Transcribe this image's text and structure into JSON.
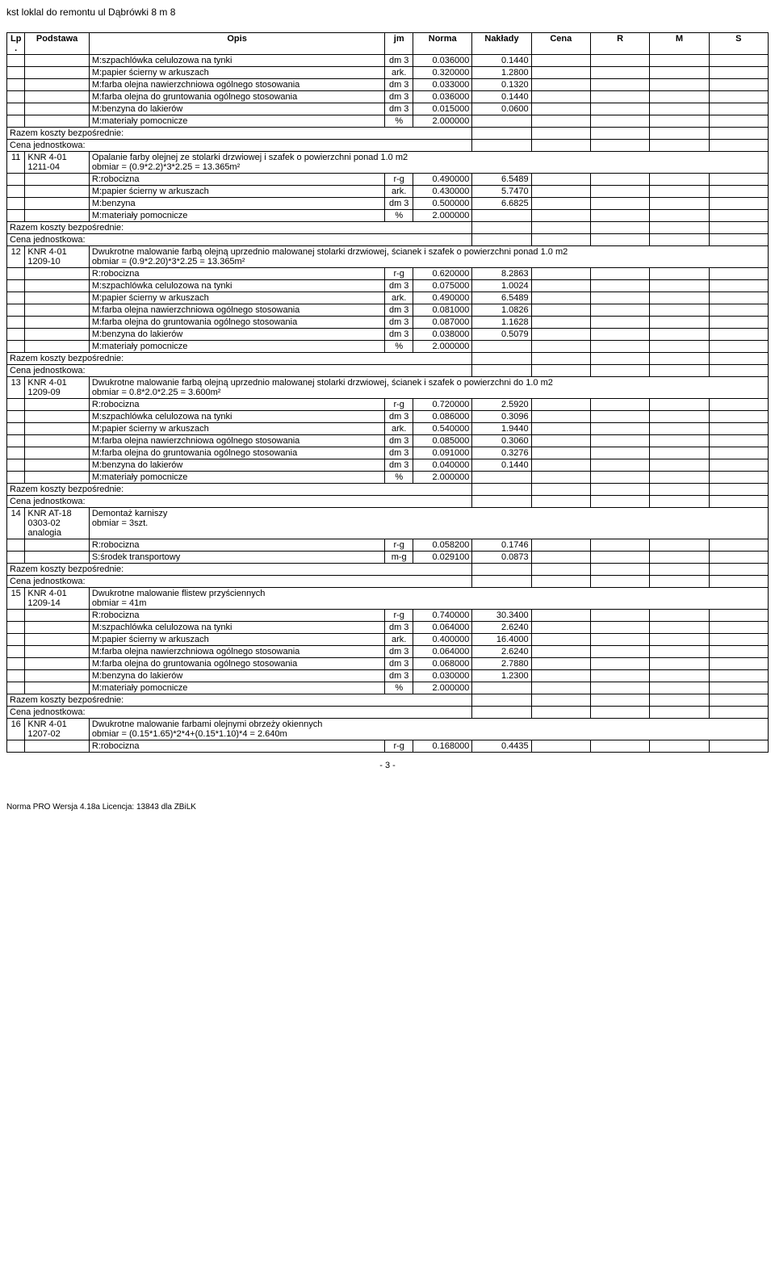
{
  "doc_title": "kst loklal do remontu ul Dąbrówki 8 m 8",
  "header": {
    "lp": "Lp.",
    "podstawa": "Podstawa",
    "opis": "Opis",
    "jm": "jm",
    "norma": "Norma",
    "naklady": "Nakłady",
    "cena": "Cena",
    "r": "R",
    "m": "M",
    "s": "S"
  },
  "labels": {
    "razem": "Razem koszty bezpośrednie:",
    "cena_j": "Cena jednostkowa:",
    "mat_pom": "M:materiały pomocnicze",
    "mat_pom_jm": "%",
    "mat_pom_norma": "2.000000"
  },
  "pre_rows": [
    {
      "name": "szpachlowka",
      "opis": "M:szpachlówka celulozowa na tynki",
      "jm": "dm 3",
      "norma": "0.036000",
      "nakl": "0.1440"
    },
    {
      "name": "papier-scierny",
      "opis": "M:papier ścierny w arkuszach",
      "jm": "ark.",
      "norma": "0.320000",
      "nakl": "1.2800"
    },
    {
      "name": "farba-nawierzch",
      "opis": "M:farba olejna nawierzchniowa ogólnego stosowania",
      "jm": "dm 3",
      "norma": "0.033000",
      "nakl": "0.1320"
    },
    {
      "name": "farba-grunt",
      "opis": "M:farba olejna do gruntowania ogólnego stosowania",
      "jm": "dm 3",
      "norma": "0.036000",
      "nakl": "0.1440"
    },
    {
      "name": "benzyna-lak",
      "opis": "M:benzyna do lakierów",
      "jm": "dm 3",
      "norma": "0.015000",
      "nakl": "0.0600"
    }
  ],
  "sections": [
    {
      "lp": "11",
      "pod": "KNR 4-01 1211-04",
      "desc": "Opalanie farby olejnej ze stolarki drzwiowej i szafek o powierzchni ponad 1.0 m2",
      "obmiar": "obmiar  = (0.9*2.2)*3*2.25 = 13.365m²",
      "rows": [
        {
          "name": "robocizna",
          "opis": "R:robocizna",
          "jm": "r-g",
          "norma": "0.490000",
          "nakl": "6.5489"
        },
        {
          "name": "papier",
          "opis": "M:papier ścierny w arkuszach",
          "jm": "ark.",
          "norma": "0.430000",
          "nakl": "5.7470"
        },
        {
          "name": "benzyna",
          "opis": "M:benzyna",
          "jm": "dm 3",
          "norma": "0.500000",
          "nakl": "6.6825"
        }
      ],
      "mat_pom": true
    },
    {
      "lp": "12",
      "pod": "KNR 4-01 1209-10",
      "desc": "Dwukrotne malowanie farbą olejną uprzednio malowanej stolarki drzwiowej, ścianek i szafek o powierzchni ponad 1.0 m2",
      "obmiar": "obmiar  = (0.9*2.20)*3*2.25 = 13.365m²",
      "rows": [
        {
          "name": "robocizna",
          "opis": "R:robocizna",
          "jm": "r-g",
          "norma": "0.620000",
          "nakl": "8.2863"
        },
        {
          "name": "szpachlowka",
          "opis": "M:szpachlówka celulozowa na tynki",
          "jm": "dm 3",
          "norma": "0.075000",
          "nakl": "1.0024"
        },
        {
          "name": "papier",
          "opis": "M:papier ścierny w arkuszach",
          "jm": "ark.",
          "norma": "0.490000",
          "nakl": "6.5489"
        },
        {
          "name": "farba-nawierzch",
          "opis": "M:farba olejna nawierzchniowa ogólnego stosowania",
          "jm": "dm 3",
          "norma": "0.081000",
          "nakl": "1.0826"
        },
        {
          "name": "farba-grunt",
          "opis": "M:farba olejna do gruntowania ogólnego stosowania",
          "jm": "dm 3",
          "norma": "0.087000",
          "nakl": "1.1628"
        },
        {
          "name": "benzyna-lak",
          "opis": "M:benzyna do lakierów",
          "jm": "dm 3",
          "norma": "0.038000",
          "nakl": "0.5079"
        }
      ],
      "mat_pom": true
    },
    {
      "lp": "13",
      "pod": "KNR 4-01 1209-09",
      "desc": "Dwukrotne malowanie farbą olejną uprzednio malowanej stolarki drzwiowej, ścianek i szafek o powierzchni do 1.0 m2",
      "obmiar": "obmiar  = 0.8*2.0*2.25 = 3.600m²",
      "rows": [
        {
          "name": "robocizna",
          "opis": "R:robocizna",
          "jm": "r-g",
          "norma": "0.720000",
          "nakl": "2.5920"
        },
        {
          "name": "szpachlowka",
          "opis": "M:szpachlówka celulozowa na tynki",
          "jm": "dm 3",
          "norma": "0.086000",
          "nakl": "0.3096"
        },
        {
          "name": "papier",
          "opis": "M:papier ścierny w arkuszach",
          "jm": "ark.",
          "norma": "0.540000",
          "nakl": "1.9440"
        },
        {
          "name": "farba-nawierzch",
          "opis": "M:farba olejna nawierzchniowa ogólnego stosowania",
          "jm": "dm 3",
          "norma": "0.085000",
          "nakl": "0.3060"
        },
        {
          "name": "farba-grunt",
          "opis": "M:farba olejna do gruntowania ogólnego stosowania",
          "jm": "dm 3",
          "norma": "0.091000",
          "nakl": "0.3276"
        },
        {
          "name": "benzyna-lak",
          "opis": "M:benzyna do lakierów",
          "jm": "dm 3",
          "norma": "0.040000",
          "nakl": "0.1440"
        }
      ],
      "mat_pom": true
    },
    {
      "lp": "14",
      "pod": "KNR AT-18 0303-02 analogia",
      "desc": "Demontaż karniszy",
      "obmiar": "obmiar  = 3szt.",
      "rows": [
        {
          "name": "robocizna",
          "opis": "R:robocizna",
          "jm": "r-g",
          "norma": "0.058200",
          "nakl": "0.1746"
        },
        {
          "name": "srodek-transport",
          "opis": "S:środek transportowy",
          "jm": "m-g",
          "norma": "0.029100",
          "nakl": "0.0873"
        }
      ],
      "mat_pom": false
    },
    {
      "lp": "15",
      "pod": "KNR 4-01 1209-14",
      "desc": "Dwukrotne malowanie flistew przyściennych",
      "obmiar": "obmiar  = 41m",
      "rows": [
        {
          "name": "robocizna",
          "opis": "R:robocizna",
          "jm": "r-g",
          "norma": "0.740000",
          "nakl": "30.3400"
        },
        {
          "name": "szpachlowka",
          "opis": "M:szpachlówka celulozowa na tynki",
          "jm": "dm 3",
          "norma": "0.064000",
          "nakl": "2.6240"
        },
        {
          "name": "papier",
          "opis": "M:papier ścierny w arkuszach",
          "jm": "ark.",
          "norma": "0.400000",
          "nakl": "16.4000"
        },
        {
          "name": "farba-nawierzch",
          "opis": "M:farba olejna nawierzchniowa ogólnego stosowania",
          "jm": "dm 3",
          "norma": "0.064000",
          "nakl": "2.6240"
        },
        {
          "name": "farba-grunt",
          "opis": "M:farba olejna do gruntowania ogólnego stosowania",
          "jm": "dm 3",
          "norma": "0.068000",
          "nakl": "2.7880"
        },
        {
          "name": "benzyna-lak",
          "opis": "M:benzyna do lakierów",
          "jm": "dm 3",
          "norma": "0.030000",
          "nakl": "1.2300"
        }
      ],
      "mat_pom": true
    },
    {
      "lp": "16",
      "pod": "KNR 4-01 1207-02",
      "desc": "Dwukrotne malowanie farbami olejnymi obrzeży okiennych",
      "obmiar": "obmiar  = (0.15*1.65)*2*4+(0.15*1.10)*4 = 2.640m",
      "rows": [
        {
          "name": "robocizna",
          "opis": "R:robocizna",
          "jm": "r-g",
          "norma": "0.168000",
          "nakl": "0.4435"
        }
      ],
      "mat_pom": false,
      "no_footer": true
    }
  ],
  "page_num": "- 3 -",
  "footer": "Norma PRO Wersja 4.18a Licencja: 13843 dla ZBiLK"
}
